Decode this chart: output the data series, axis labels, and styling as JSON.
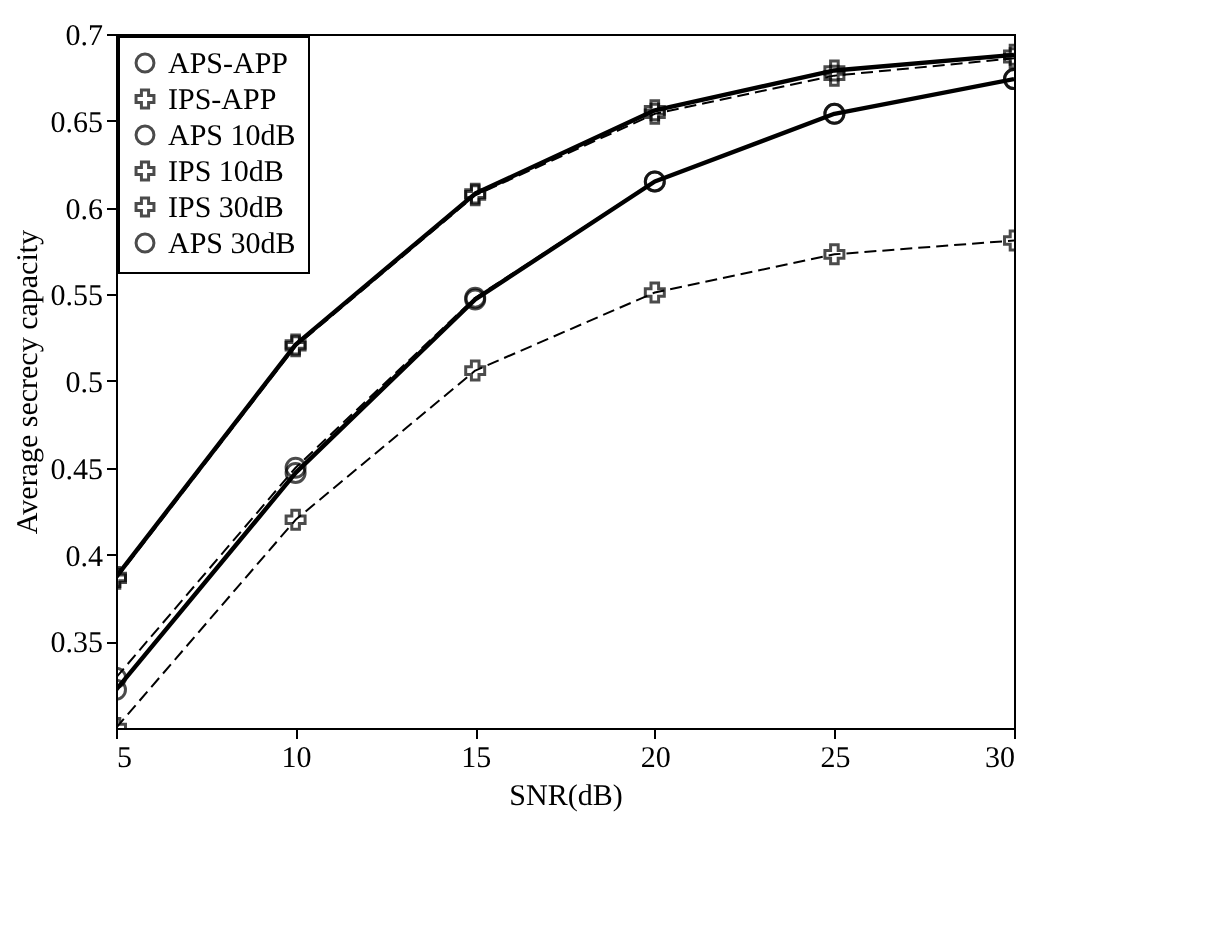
{
  "chart_data": {
    "type": "line",
    "xlabel": "SNR(dB)",
    "ylabel": "Average secrecy capacity",
    "x": [
      5,
      10,
      15,
      20,
      25,
      30
    ],
    "xlim": [
      5,
      30
    ],
    "xticks": [
      5,
      10,
      15,
      20,
      25,
      30
    ],
    "ylim": [
      0.3,
      0.7
    ],
    "yticks": [
      0.35,
      0.4,
      0.45,
      0.5,
      0.55,
      0.6,
      0.65,
      0.7
    ],
    "grid": false,
    "legend": "top left",
    "series": [
      {
        "name": "APS-APP",
        "color": "#000000",
        "line_style": "solid",
        "marker": "circle",
        "values": [
          0.322,
          0.447,
          0.547,
          0.615,
          0.654,
          0.674
        ]
      },
      {
        "name": "IPS-APP",
        "color": "#000000",
        "line_style": "solid",
        "marker": "cross",
        "values": [
          0.387,
          0.521,
          0.608,
          0.656,
          0.679,
          0.688
        ]
      },
      {
        "name": "APS 10dB",
        "color": "#000000",
        "line_style": "dashed",
        "marker": "circle",
        "values": [
          0.329,
          0.45,
          0.548,
          0.615,
          0.654,
          0.674
        ]
      },
      {
        "name": "IPS 10dB",
        "color": "#000000",
        "line_style": "dashed",
        "marker": "cross",
        "values": [
          0.3,
          0.42,
          0.506,
          0.551,
          0.573,
          0.581
        ]
      },
      {
        "name": "IPS 30dB",
        "color": "#000000",
        "line_style": "dashed",
        "marker": "cross",
        "values": [
          0.386,
          0.52,
          0.607,
          0.654,
          0.676,
          0.686
        ]
      },
      {
        "name": "APS 30dB",
        "color": "#000000",
        "line_style": "dashed",
        "marker": "circle",
        "values": [
          null,
          null,
          null,
          null,
          null,
          null
        ]
      }
    ]
  }
}
